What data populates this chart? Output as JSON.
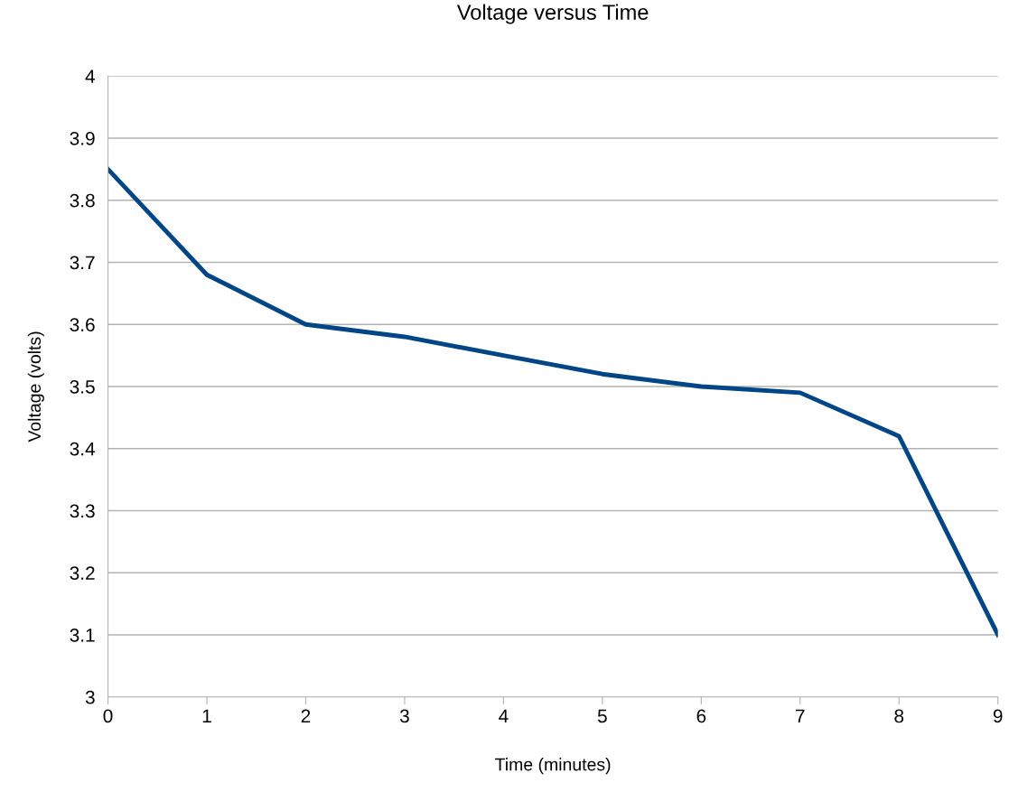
{
  "chart_data": {
    "type": "line",
    "title": "Voltage versus Time",
    "xlabel": "Time (minutes)",
    "ylabel": "Voltage (volts)",
    "x": [
      0,
      1,
      2,
      3,
      4,
      5,
      6,
      7,
      8,
      9
    ],
    "series": [
      {
        "color": "#004586",
        "values": [
          3.85,
          3.68,
          3.6,
          3.58,
          3.55,
          3.52,
          3.5,
          3.49,
          3.42,
          3.1
        ]
      }
    ],
    "xlim": [
      0,
      9
    ],
    "xticks": [
      0,
      1,
      2,
      3,
      4,
      5,
      6,
      7,
      8,
      9
    ],
    "ylim": [
      3,
      4
    ],
    "yticks": [
      3,
      3.1,
      3.2,
      3.3,
      3.4,
      3.5,
      3.6,
      3.7,
      3.8,
      3.9,
      4
    ],
    "grid": "y",
    "legend": false,
    "marker": "none",
    "line_style": "solid"
  }
}
